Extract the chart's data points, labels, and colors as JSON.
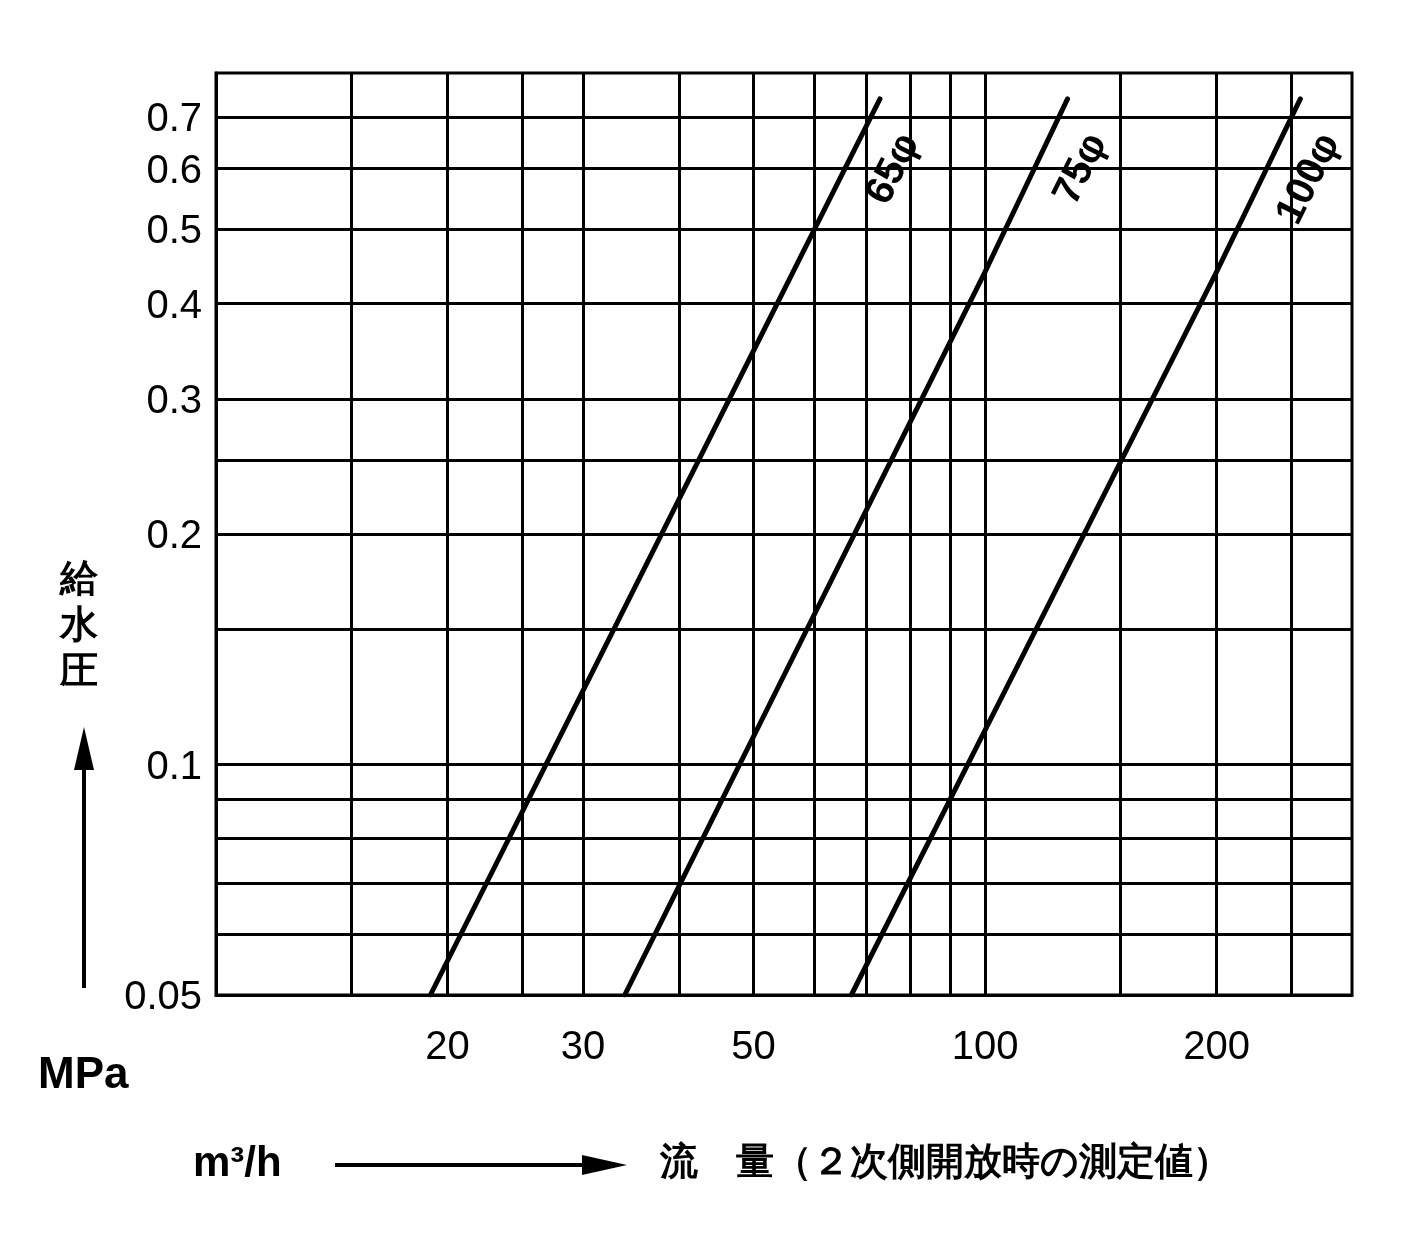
{
  "chart_data": {
    "type": "line",
    "xlabel": "流　量（２次側開放時の測定値）",
    "ylabel": "給水圧",
    "annotations": [
      "MPa",
      "m³/h"
    ],
    "log": "xy",
    "grid": true,
    "legend": false,
    "marker": "none",
    "line_style": "solid",
    "xlim": [
      10,
      300
    ],
    "xticks": [
      {
        "value": 15,
        "label": null
      },
      20,
      {
        "value": 25,
        "label": null
      },
      30,
      {
        "value": 40,
        "label": null
      },
      50,
      {
        "value": 60,
        "label": null
      },
      {
        "value": 70,
        "label": null
      },
      {
        "value": 80,
        "label": null
      },
      {
        "value": 90,
        "label": null
      },
      100,
      {
        "value": 150,
        "label": null
      },
      200,
      {
        "value": 250,
        "label": null
      }
    ],
    "ylim": [
      0.05,
      0.8
    ],
    "yticks": [
      0.05,
      {
        "value": 0.06,
        "label": null
      },
      {
        "value": 0.07,
        "label": null
      },
      {
        "value": 0.08,
        "label": null
      },
      {
        "value": 0.09,
        "label": null
      },
      0.1,
      {
        "value": 0.15,
        "label": null
      },
      0.2,
      {
        "value": 0.25,
        "label": null
      },
      0.3,
      0.4,
      0.5,
      0.6,
      0.7
    ],
    "series": [
      {
        "name": "65φ",
        "color": "#000000",
        "x": [
          19,
          60,
          73
        ],
        "values": [
          0.05,
          0.5,
          0.74
        ]
      },
      {
        "name": "75φ",
        "color": "#000000",
        "x": [
          34,
          100,
          128
        ],
        "values": [
          0.05,
          0.44,
          0.74
        ]
      },
      {
        "name": "100φ",
        "color": "#000000",
        "x": [
          67,
          200,
          257
        ],
        "values": [
          0.05,
          0.44,
          0.74
        ]
      }
    ]
  }
}
